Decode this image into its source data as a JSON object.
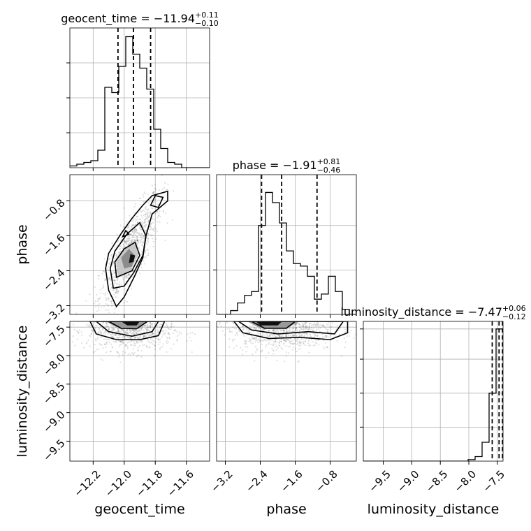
{
  "chart_data": {
    "type": "corner",
    "parameters": [
      "geocent_time",
      "phase",
      "luminosity_distance"
    ],
    "axis_labels": {
      "geocent_time": "geocent_time",
      "phase": "phase",
      "luminosity_distance": "luminosity_distance"
    },
    "ranges": {
      "geocent_time": [
        -12.35,
        -11.45
      ],
      "phase": [
        -3.4,
        -0.2
      ],
      "luminosity_distance": [
        -9.85,
        -7.4
      ]
    },
    "ticks": {
      "geocent_time": [
        -12.2,
        -12.0,
        -11.8,
        -11.6
      ],
      "phase": [
        -3.2,
        -2.4,
        -1.6,
        -0.8
      ],
      "luminosity_distance": [
        -9.5,
        -9.0,
        -8.5,
        -8.0,
        -7.5
      ]
    },
    "tick_labels": {
      "geocent_time": [
        "−12.2",
        "−12.0",
        "−11.8",
        "−11.6"
      ],
      "phase": [
        "−3.2",
        "−2.4",
        "−1.6",
        "−0.8"
      ],
      "luminosity_distance": [
        "−9.5",
        "−9.0",
        "−8.5",
        "−8.0",
        "−7.5"
      ]
    },
    "titles": {
      "geocent_time": {
        "text": "geocent_time = −11.94",
        "upper": "+0.11",
        "lower": "−0.10"
      },
      "phase": {
        "text": "phase = −1.91",
        "upper": "+0.81",
        "lower": "−0.46"
      },
      "luminosity_distance": {
        "text": "luminosity_distance = −7.47",
        "upper": "+0.06",
        "lower": "−0.12"
      }
    },
    "quantiles": {
      "geocent_time": [
        -12.04,
        -11.94,
        -11.83
      ],
      "phase": [
        -2.37,
        -1.91,
        -1.1
      ],
      "luminosity_distance": [
        -7.59,
        -7.47,
        -7.41
      ]
    },
    "histograms": {
      "geocent_time": {
        "edges": [
          -12.35,
          -12.305,
          -12.26,
          -12.215,
          -12.17,
          -12.125,
          -12.08,
          -12.035,
          -11.99,
          -11.945,
          -11.9,
          -11.855,
          -11.81,
          -11.765,
          -11.72,
          -11.675,
          -11.63,
          -11.585,
          -11.54,
          -11.495,
          -11.45
        ],
        "counts": [
          1,
          2,
          3,
          4,
          10,
          46,
          43,
          58,
          75,
          65,
          57,
          45,
          22,
          11,
          3,
          2,
          0,
          0,
          0,
          0
        ]
      },
      "phase": {
        "edges": [
          -3.4,
          -3.24,
          -3.08,
          -2.92,
          -2.76,
          -2.6,
          -2.44,
          -2.28,
          -2.12,
          -1.96,
          -1.8,
          -1.64,
          -1.48,
          -1.32,
          -1.16,
          -1.0,
          -0.84,
          -0.68,
          -0.52,
          -0.36,
          -0.2
        ],
        "counts": [
          0,
          0,
          3,
          9,
          15,
          18,
          70,
          96,
          88,
          72,
          50,
          40,
          38,
          30,
          12,
          16,
          30,
          18,
          4,
          0
        ]
      },
      "luminosity_distance": {
        "edges": [
          -9.85,
          -9.7275,
          -9.605,
          -9.4825,
          -9.36,
          -9.2375,
          -9.115,
          -8.9925,
          -8.87,
          -8.7475,
          -8.625,
          -8.5025,
          -8.38,
          -8.2575,
          -8.135,
          -8.0125,
          -7.89,
          -7.7675,
          -7.645,
          -7.5225,
          -7.4
        ],
        "counts": [
          0,
          0,
          0,
          0,
          0,
          0,
          0,
          0,
          0,
          0,
          0,
          0,
          0,
          0,
          0,
          2,
          6,
          25,
          90,
          175
        ]
      }
    },
    "hist_ylim": {
      "geocent_time": [
        0,
        80
      ],
      "phase": [
        0,
        110
      ],
      "luminosity_distance": [
        0,
        185
      ]
    },
    "hist_yticks": {
      "geocent_time": [
        20,
        40,
        60
      ],
      "phase": [
        35,
        70
      ],
      "luminosity_distance": [
        45,
        90,
        135,
        175
      ]
    },
    "contours": [
      {
        "x": "geocent_time",
        "y": "phase",
        "levels": [
          [
            [
              -12.05,
              -3.22
            ],
            [
              -12.1,
              -2.85
            ],
            [
              -12.12,
              -2.35
            ],
            [
              -12.1,
              -2.0
            ],
            [
              -12.02,
              -1.55
            ],
            [
              -11.95,
              -1.2
            ],
            [
              -11.88,
              -0.9
            ],
            [
              -11.82,
              -0.68
            ],
            [
              -11.72,
              -0.58
            ],
            [
              -11.72,
              -0.8
            ],
            [
              -11.82,
              -1.1
            ],
            [
              -11.86,
              -1.6
            ],
            [
              -11.88,
              -2.1
            ],
            [
              -11.93,
              -2.5
            ],
            [
              -12.0,
              -3.0
            ]
          ],
          [
            [
              -12.07,
              -2.8
            ],
            [
              -12.09,
              -2.35
            ],
            [
              -12.06,
              -1.95
            ],
            [
              -11.98,
              -1.55
            ],
            [
              -11.9,
              -1.3
            ],
            [
              -11.86,
              -1.6
            ],
            [
              -11.88,
              -2.05
            ],
            [
              -11.94,
              -2.45
            ],
            [
              -12.0,
              -2.75
            ]
          ],
          [
            [
              -12.05,
              -2.55
            ],
            [
              -12.06,
              -2.2
            ],
            [
              -12.0,
              -1.9
            ],
            [
              -11.93,
              -1.75
            ],
            [
              -11.9,
              -2.05
            ],
            [
              -11.95,
              -2.4
            ]
          ],
          [
            [
              -11.83,
              -0.9
            ],
            [
              -11.8,
              -0.68
            ],
            [
              -11.75,
              -0.72
            ],
            [
              -11.78,
              -0.95
            ]
          ],
          [
            [
              -12.01,
              -1.62
            ],
            [
              -11.99,
              -1.48
            ],
            [
              -11.97,
              -1.56
            ]
          ]
        ],
        "fills": [
          {
            "poly": [
              [
                -12.04,
                -2.55
              ],
              [
                -12.05,
                -2.2
              ],
              [
                -12.0,
                -1.92
              ],
              [
                -11.93,
                -1.78
              ],
              [
                -11.91,
                -2.05
              ],
              [
                -11.96,
                -2.4
              ]
            ],
            "shade": "#c8c8c8"
          },
          {
            "poly": [
              [
                -12.0,
                -2.35
              ],
              [
                -12.02,
                -2.1
              ],
              [
                -11.97,
                -1.9
              ],
              [
                -11.93,
                -2.05
              ],
              [
                -11.95,
                -2.3
              ]
            ],
            "shade": "#8c8c8c"
          },
          {
            "poly": [
              [
                -11.97,
                -2.22
              ],
              [
                -11.96,
                -2.02
              ],
              [
                -11.93,
                -2.05
              ],
              [
                -11.94,
                -2.2
              ]
            ],
            "shade": "#111111"
          }
        ],
        "scatter_center": [
          -11.96,
          -1.95
        ],
        "scatter_spread": [
          0.1,
          0.65
        ],
        "scatter_rho": 0.82
      },
      {
        "x": "geocent_time",
        "y": "luminosity_distance",
        "levels": [
          [
            [
              -12.22,
              -7.4
            ],
            [
              -12.18,
              -7.62
            ],
            [
              -12.05,
              -7.72
            ],
            [
              -11.9,
              -7.72
            ],
            [
              -11.78,
              -7.65
            ],
            [
              -11.74,
              -7.4
            ]
          ],
          [
            [
              -12.18,
              -7.4
            ],
            [
              -12.1,
              -7.58
            ],
            [
              -11.95,
              -7.66
            ],
            [
              -11.82,
              -7.58
            ],
            [
              -11.78,
              -7.4
            ]
          ],
          [
            [
              -12.1,
              -7.4
            ],
            [
              -12.02,
              -7.52
            ],
            [
              -11.92,
              -7.53
            ],
            [
              -11.85,
              -7.4
            ]
          ]
        ],
        "fills": [
          {
            "poly": [
              [
                -12.12,
                -7.4
              ],
              [
                -12.05,
                -7.5
              ],
              [
                -11.92,
                -7.52
              ],
              [
                -11.84,
                -7.4
              ]
            ],
            "shade": "#9a9a9a"
          },
          {
            "poly": [
              [
                -12.02,
                -7.4
              ],
              [
                -11.98,
                -7.47
              ],
              [
                -11.92,
                -7.47
              ],
              [
                -11.9,
                -7.4
              ]
            ],
            "shade": "#111111"
          }
        ],
        "scatter_center": [
          -11.96,
          -7.55
        ],
        "scatter_spread": [
          0.14,
          0.18
        ],
        "scatter_rho": 0.0
      },
      {
        "x": "phase",
        "y": "luminosity_distance",
        "levels": [
          [
            [
              -3.0,
              -7.4
            ],
            [
              -2.8,
              -7.6
            ],
            [
              -2.2,
              -7.7
            ],
            [
              -1.5,
              -7.68
            ],
            [
              -0.8,
              -7.72
            ],
            [
              -0.4,
              -7.6
            ],
            [
              -0.4,
              -7.4
            ]
          ],
          [
            [
              -2.9,
              -7.4
            ],
            [
              -2.6,
              -7.55
            ],
            [
              -2.0,
              -7.62
            ],
            [
              -1.3,
              -7.58
            ],
            [
              -0.7,
              -7.62
            ],
            [
              -0.5,
              -7.4
            ]
          ],
          [
            [
              -2.6,
              -7.4
            ],
            [
              -2.3,
              -7.52
            ],
            [
              -1.8,
              -7.52
            ],
            [
              -1.6,
              -7.4
            ]
          ]
        ],
        "fills": [
          {
            "poly": [
              [
                -2.7,
                -7.4
              ],
              [
                -2.4,
                -7.52
              ],
              [
                -1.8,
                -7.52
              ],
              [
                -1.5,
                -7.4
              ]
            ],
            "shade": "#9a9a9a"
          },
          {
            "poly": [
              [
                -2.5,
                -7.4
              ],
              [
                -2.4,
                -7.47
              ],
              [
                -2.0,
                -7.47
              ],
              [
                -1.9,
                -7.4
              ]
            ],
            "shade": "#111111"
          }
        ],
        "scatter_center": [
          -1.9,
          -7.55
        ],
        "scatter_spread": [
          0.6,
          0.18
        ],
        "scatter_rho": 0.0
      }
    ],
    "grid": true,
    "colors": {
      "line": "#000000",
      "grid": "#b0b0b0",
      "scatter": "#000000"
    }
  }
}
